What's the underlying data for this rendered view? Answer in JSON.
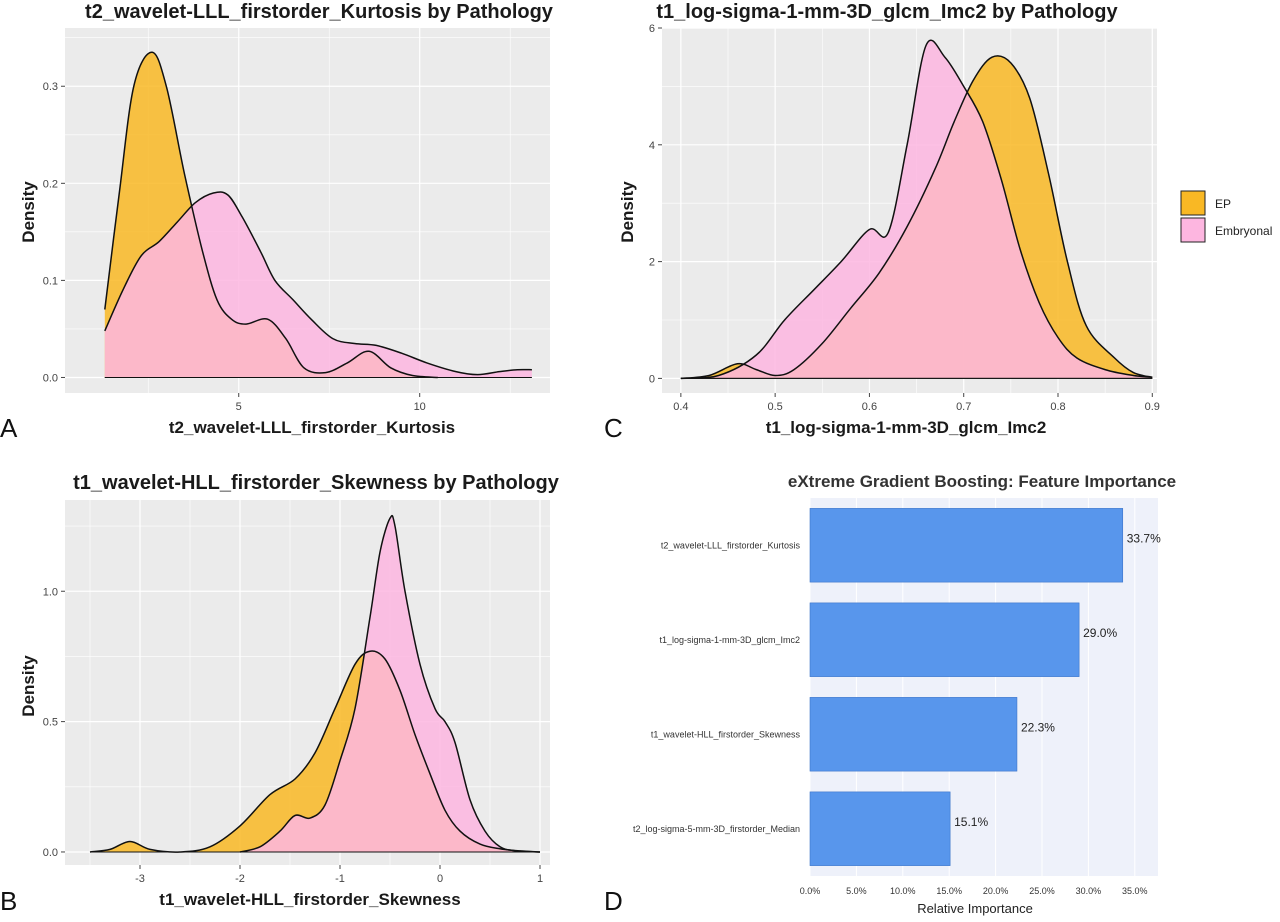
{
  "colors": {
    "ep": "#f9b824",
    "embryonal": "#fdb6e0",
    "panel_bg": "#ebebeb",
    "grid": "#ffffff",
    "bar": "#5896ec",
    "xgb_bg": "#eef1fa"
  },
  "legend": {
    "items": [
      {
        "label": "EP",
        "color": "#f9b824"
      },
      {
        "label": "Embryonal",
        "color": "#fdb6e0"
      }
    ]
  },
  "chart_data": [
    {
      "type": "area",
      "panel_letter": "A",
      "title": "t2_wavelet-LLL_firstorder_Kurtosis by Pathology",
      "xlabel": "t2_wavelet-LLL_firstorder_Kurtosis",
      "ylabel": "Density",
      "xlim": [
        0.2,
        13.6
      ],
      "ylim": [
        -0.016,
        0.36
      ],
      "x_ticks": [
        5,
        10
      ],
      "y_ticks": [
        0.0,
        0.1,
        0.2,
        0.3
      ],
      "y_tick_labels": [
        "0.0",
        "0.1",
        "0.2",
        "0.3"
      ],
      "grid": true,
      "series": [
        {
          "name": "EP",
          "x": [
            1.3,
            1.7,
            2.1,
            2.6,
            3.0,
            3.5,
            4.0,
            4.4,
            4.8,
            5.2,
            5.8,
            6.3,
            6.8,
            7.4,
            8.0,
            8.6,
            9.2,
            9.8,
            10.5
          ],
          "y": [
            0.07,
            0.19,
            0.3,
            0.335,
            0.3,
            0.21,
            0.13,
            0.08,
            0.06,
            0.055,
            0.06,
            0.04,
            0.01,
            0.005,
            0.015,
            0.027,
            0.01,
            0.002,
            0.0
          ]
        },
        {
          "name": "Embryonal",
          "x": [
            1.3,
            1.8,
            2.3,
            2.8,
            3.3,
            3.8,
            4.3,
            4.7,
            5.1,
            5.6,
            6.0,
            6.5,
            7.0,
            7.6,
            8.2,
            8.8,
            9.5,
            10.2,
            11.0,
            11.6,
            12.2,
            12.7,
            13.1
          ],
          "y": [
            0.048,
            0.09,
            0.125,
            0.14,
            0.16,
            0.18,
            0.19,
            0.188,
            0.165,
            0.13,
            0.1,
            0.08,
            0.06,
            0.04,
            0.035,
            0.033,
            0.025,
            0.015,
            0.006,
            0.003,
            0.006,
            0.008,
            0.008
          ]
        }
      ]
    },
    {
      "type": "area",
      "panel_letter": "C",
      "title": "t1_log-sigma-1-mm-3D_glcm_Imc2 by Pathology",
      "xlabel": "t1_log-sigma-1-mm-3D_glcm_Imc2",
      "ylabel": "Density",
      "xlim": [
        0.38,
        0.905
      ],
      "ylim": [
        -0.25,
        6.0
      ],
      "x_ticks": [
        0.4,
        0.5,
        0.6,
        0.7,
        0.8,
        0.9
      ],
      "y_ticks": [
        0,
        2,
        4,
        6
      ],
      "y_tick_labels": [
        "0",
        "2",
        "4",
        "6"
      ],
      "grid": true,
      "series": [
        {
          "name": "EP",
          "x": [
            0.4,
            0.43,
            0.46,
            0.48,
            0.5,
            0.52,
            0.55,
            0.58,
            0.61,
            0.64,
            0.67,
            0.69,
            0.71,
            0.73,
            0.75,
            0.77,
            0.79,
            0.81,
            0.83,
            0.86,
            0.88,
            0.9
          ],
          "y": [
            0.0,
            0.05,
            0.25,
            0.15,
            0.05,
            0.15,
            0.6,
            1.2,
            1.8,
            2.6,
            3.6,
            4.4,
            5.1,
            5.5,
            5.4,
            4.8,
            3.5,
            2.0,
            0.9,
            0.35,
            0.1,
            0.02
          ]
        },
        {
          "name": "Embryonal",
          "x": [
            0.4,
            0.44,
            0.48,
            0.51,
            0.54,
            0.57,
            0.6,
            0.62,
            0.64,
            0.66,
            0.68,
            0.7,
            0.72,
            0.74,
            0.76,
            0.78,
            0.8,
            0.82,
            0.85,
            0.88,
            0.9
          ],
          "y": [
            0.0,
            0.05,
            0.4,
            1.0,
            1.5,
            2.0,
            2.55,
            2.5,
            4.0,
            5.7,
            5.5,
            5.0,
            4.4,
            3.4,
            2.2,
            1.3,
            0.7,
            0.35,
            0.15,
            0.05,
            0.02
          ]
        }
      ]
    },
    {
      "type": "area",
      "panel_letter": "B",
      "title": "t1_wavelet-HLL_firstorder_Skewness by Pathology",
      "xlabel": "t1_wavelet-HLL_firstorder_Skewness",
      "ylabel": "Density",
      "xlim": [
        -3.75,
        1.1
      ],
      "ylim": [
        -0.05,
        1.35
      ],
      "x_ticks": [
        -3,
        -2,
        -1,
        0,
        1
      ],
      "y_ticks": [
        0.0,
        0.5,
        1.0
      ],
      "y_tick_labels": [
        "0.0",
        "0.5",
        "1.0"
      ],
      "grid": true,
      "series": [
        {
          "name": "EP",
          "x": [
            -3.5,
            -3.3,
            -3.1,
            -2.9,
            -2.6,
            -2.3,
            -2.0,
            -1.7,
            -1.45,
            -1.25,
            -1.05,
            -0.85,
            -0.7,
            -0.55,
            -0.4,
            -0.25,
            -0.1,
            0.05,
            0.2,
            0.4,
            0.6,
            0.8,
            1.0
          ],
          "y": [
            0.0,
            0.01,
            0.04,
            0.01,
            0.0,
            0.02,
            0.1,
            0.22,
            0.28,
            0.38,
            0.55,
            0.72,
            0.77,
            0.74,
            0.62,
            0.45,
            0.3,
            0.16,
            0.08,
            0.03,
            0.012,
            0.004,
            0.0
          ]
        },
        {
          "name": "Embryonal",
          "x": [
            -2.0,
            -1.8,
            -1.6,
            -1.45,
            -1.3,
            -1.15,
            -1.0,
            -0.85,
            -0.7,
            -0.6,
            -0.5,
            -0.45,
            -0.35,
            -0.2,
            -0.05,
            0.05,
            0.15,
            0.3,
            0.45,
            0.6,
            0.75,
            1.0
          ],
          "y": [
            0.0,
            0.02,
            0.08,
            0.14,
            0.13,
            0.18,
            0.35,
            0.55,
            0.9,
            1.15,
            1.28,
            1.25,
            1.0,
            0.72,
            0.55,
            0.5,
            0.42,
            0.2,
            0.08,
            0.02,
            0.005,
            0.0
          ]
        }
      ]
    },
    {
      "type": "bar",
      "panel_letter": "D",
      "orientation": "horizontal",
      "title": "eXtreme Gradient Boosting: Feature Importance",
      "xlabel": "Relative Importance",
      "categories": [
        "t2_wavelet-LLL_firstorder_Kurtosis",
        "t1_log-sigma-1-mm-3D_glcm_Imc2",
        "t1_wavelet-HLL_firstorder_Skewness",
        "t2_log-sigma-5-mm-3D_firstorder_Median"
      ],
      "values": [
        33.7,
        29.0,
        22.3,
        15.1
      ],
      "value_labels": [
        "33.7%",
        "29.0%",
        "22.3%",
        "15.1%"
      ],
      "xlim": [
        0,
        37.5
      ],
      "x_ticks": [
        0,
        5,
        10,
        15,
        20,
        25,
        30,
        35
      ],
      "x_tick_labels": [
        "0.0%",
        "5.0%",
        "10.0%",
        "15.0%",
        "20.0%",
        "25.0%",
        "30.0%",
        "35.0%"
      ]
    }
  ]
}
